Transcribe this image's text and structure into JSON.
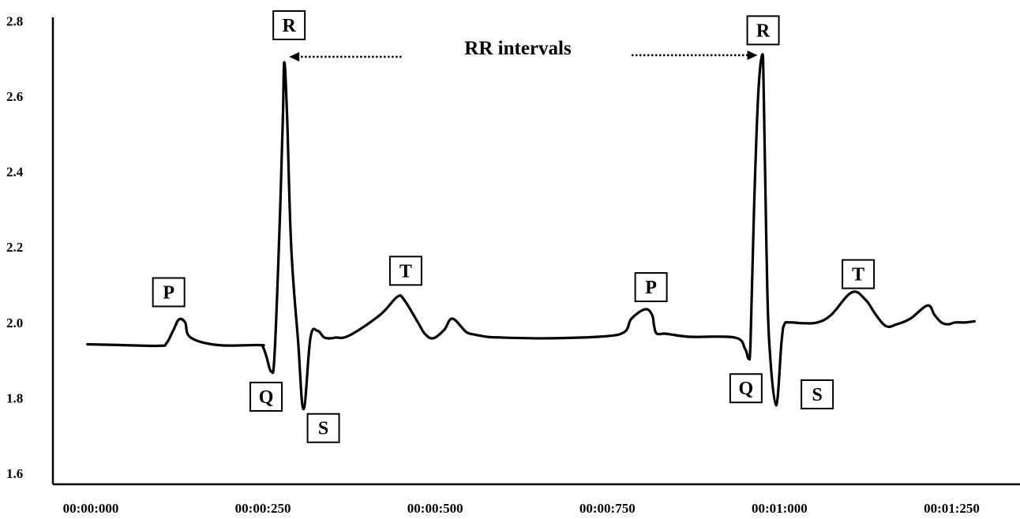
{
  "chart_data": {
    "type": "line",
    "title": "",
    "xlabel": "",
    "ylabel": "",
    "ylim": [
      1.6,
      2.8
    ],
    "xlim_ms": [
      0,
      1340
    ],
    "y_ticks": [
      "1.6",
      "1.8",
      "2.0",
      "2.2",
      "2.4",
      "2.6",
      "2.8"
    ],
    "x_ticks": [
      {
        "value": 0,
        "label": "00:00:000"
      },
      {
        "value": 250,
        "label": "00:00:250"
      },
      {
        "value": 500,
        "label": "00:00:500"
      },
      {
        "value": 750,
        "label": "00:00:750"
      },
      {
        "value": 1000,
        "label": "00:01:000"
      },
      {
        "value": 1250,
        "label": "00:01:250"
      }
    ],
    "grid": false,
    "series": [
      {
        "name": "",
        "x": [
          50,
          100,
          155,
          165,
          175,
          183,
          192,
          200,
          240,
          300,
          305,
          310,
          317,
          322,
          330,
          334,
          336,
          340,
          346,
          356,
          364,
          374,
          384,
          394,
          404,
          410,
          430,
          475,
          500,
          510,
          530,
          540,
          552,
          568,
          580,
          600,
          612,
          620,
          630,
          650,
          720,
          800,
          830,
          840,
          860,
          870,
          873,
          877,
          890,
          925,
          990,
          1005,
          1010,
          1013,
          1018,
          1024,
          1030,
          1032,
          1036,
          1040,
          1050,
          1058,
          1062,
          1070,
          1090,
          1110,
          1130,
          1160,
          1180,
          1195,
          1210,
          1225,
          1245,
          1270,
          1280,
          1290,
          1300,
          1310,
          1325,
          1338
        ],
        "values": [
          1.942,
          1.94,
          1.938,
          1.945,
          1.98,
          2.008,
          2.0,
          1.96,
          1.94,
          1.94,
          1.935,
          1.91,
          1.87,
          1.92,
          2.3,
          2.55,
          2.69,
          2.55,
          2.2,
          1.95,
          1.77,
          1.96,
          1.978,
          1.96,
          1.958,
          1.96,
          1.965,
          2.02,
          2.068,
          2.06,
          2.0,
          1.97,
          1.958,
          1.98,
          2.01,
          1.975,
          1.968,
          1.965,
          1.962,
          1.96,
          1.958,
          1.963,
          1.975,
          2.01,
          2.035,
          2.02,
          1.99,
          1.97,
          1.97,
          1.962,
          1.96,
          1.93,
          1.905,
          1.95,
          2.3,
          2.6,
          2.71,
          2.62,
          2.2,
          1.95,
          1.78,
          1.95,
          1.995,
          2.0,
          1.998,
          2.0,
          2.02,
          2.08,
          2.06,
          2.02,
          1.99,
          1.995,
          2.01,
          2.045,
          2.02,
          2.0,
          1.995,
          2.0,
          2.0,
          2.003
        ]
      }
    ],
    "wave_labels": [
      {
        "text": "P",
        "x": 175,
        "y": 2.007
      },
      {
        "text": "Q",
        "x": 321,
        "y": 1.87
      },
      {
        "text": "R",
        "x": 336,
        "y": 2.69
      },
      {
        "text": "S",
        "x": 364,
        "y": 1.77
      },
      {
        "text": "T",
        "x": 510,
        "y": 2.068
      },
      {
        "text": "P",
        "x": 865,
        "y": 2.035
      },
      {
        "text": "Q",
        "x": 1012,
        "y": 1.905
      },
      {
        "text": "R",
        "x": 1030,
        "y": 2.71
      },
      {
        "text": "S",
        "x": 1057,
        "y": 1.78
      },
      {
        "text": "T",
        "x": 1167,
        "y": 2.08
      }
    ],
    "annotation": {
      "text": "RR intervals",
      "from_peak_x": 336,
      "to_peak_x": 1030
    }
  }
}
